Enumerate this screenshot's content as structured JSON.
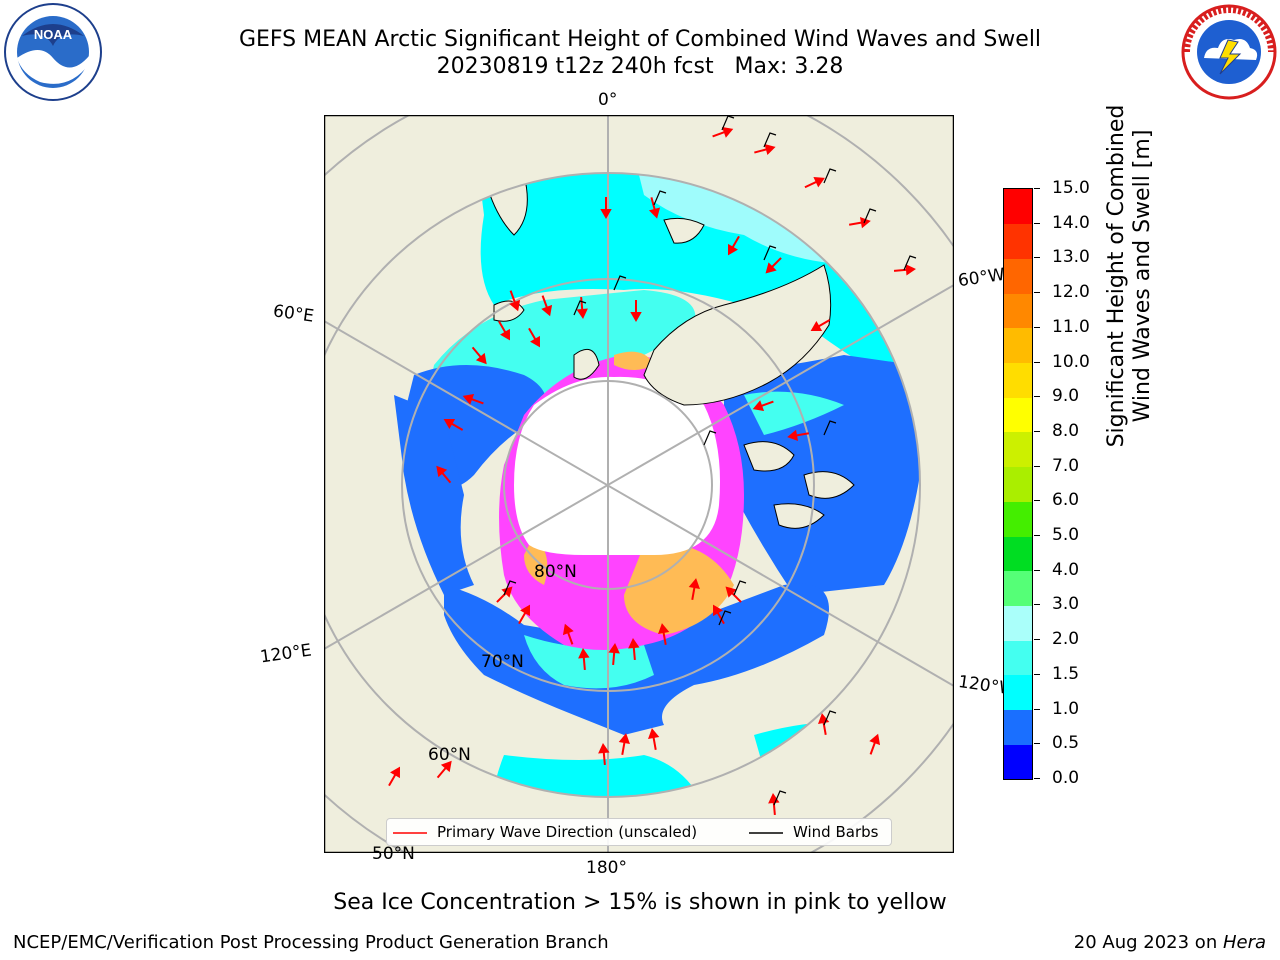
{
  "header": {
    "title_line1": "GEFS MEAN Arctic Significant Height of Combined Wind Waves and Swell",
    "title_line2": "20230819 t12z 240h fcst   Max: 3.28"
  },
  "logos": {
    "left": {
      "name": "NOAA",
      "ring_text": "NATIONAL OCEANIC AND ATMOSPHERIC ADMINISTRATION",
      "bottom_text": "U.S. DEPARTMENT OF COMMERCE"
    },
    "right": {
      "name": "NATIONAL WEATHER SERVICE"
    }
  },
  "map": {
    "lon_labels": {
      "top": "0°",
      "left_upper": "60°E",
      "right_upper": "60°W",
      "left_lower": "120°E",
      "right_lower": "120°W",
      "bottom": "180°"
    },
    "lat_labels": {
      "lat80": "80°N",
      "lat70": "70°N",
      "lat60": "60°N",
      "lat50": "50°N"
    },
    "colors": {
      "land": "#efeedd",
      "ocean_low": "#1e6fff",
      "ocean_mid": "#00ffff",
      "ocean_light": "#9ffcfc",
      "ice_pink": "#ff44ff",
      "ice_orange": "#ffbb55",
      "pole_white": "#ffffff",
      "arrow": "#ff0000",
      "barb": "#000000"
    }
  },
  "colorbar": {
    "ticks": [
      "0.0",
      "0.5",
      "1.0",
      "1.5",
      "2.0",
      "3.0",
      "4.0",
      "5.0",
      "6.0",
      "7.0",
      "8.0",
      "9.0",
      "10.0",
      "11.0",
      "12.0",
      "13.0",
      "14.0",
      "15.0"
    ],
    "colors": [
      "#0000ff",
      "#1a6fff",
      "#00ffff",
      "#44fff0",
      "#aafffa",
      "#55ff77",
      "#00dd22",
      "#44ee00",
      "#aaee00",
      "#ccf000",
      "#ffff00",
      "#ffdd00",
      "#ffbb00",
      "#ff8800",
      "#ff6600",
      "#ff3300",
      "#ff0000"
    ],
    "label_line1": "Significant Height of Combined",
    "label_line2": "Wind Waves and Swell [m]"
  },
  "legend": {
    "item1": "Primary Wave Direction (unscaled)",
    "item2": "Wind Barbs"
  },
  "caption": "Sea Ice Concentration > 15% is shown in pink to yellow",
  "footer": {
    "left": "NCEP/EMC/Verification Post Processing Product Generation Branch",
    "right_date": "20 Aug 2023 on ",
    "right_host": "Hera"
  }
}
